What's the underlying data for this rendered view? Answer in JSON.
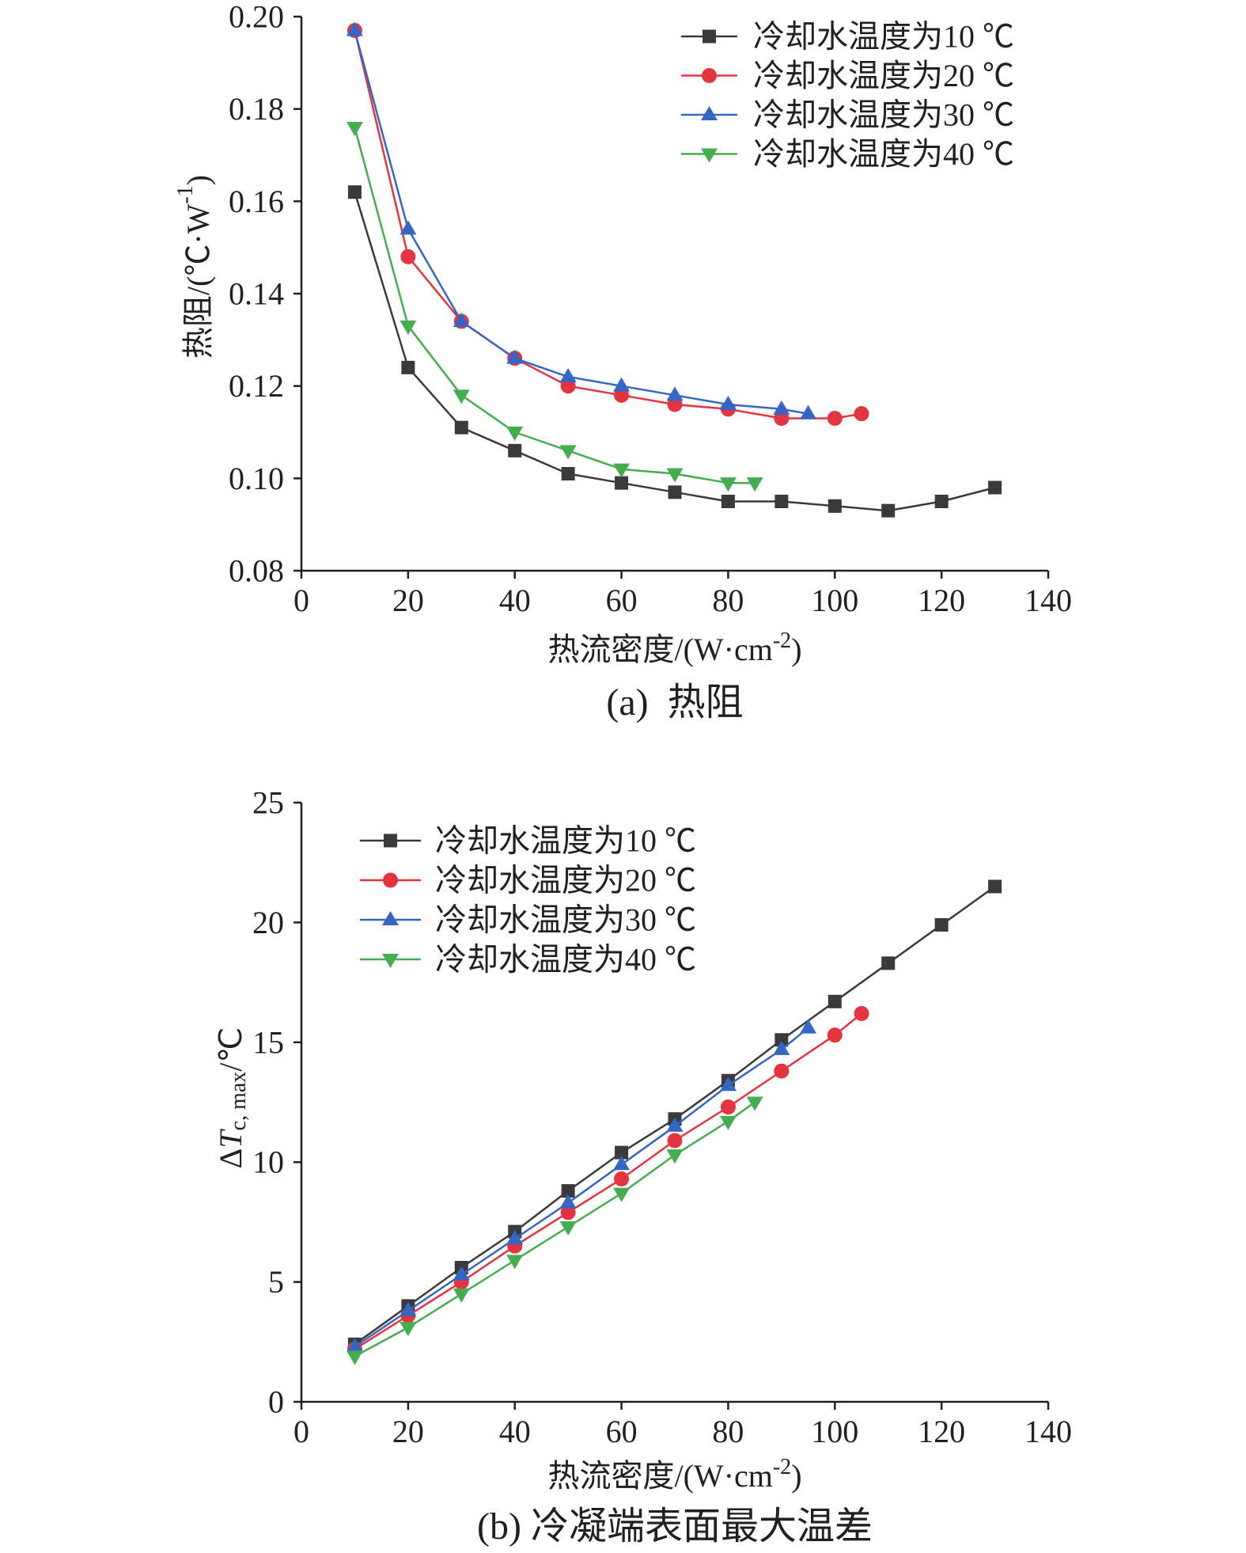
{
  "chart_data": [
    {
      "type": "line",
      "caption": "(a)  热阻",
      "xlabel": {
        "main": "热流密度/(W·cm",
        "superscript": "-2",
        "tail": ")"
      },
      "ylabel": {
        "main": "热阻/(℃·W",
        "superscript": "-1",
        "tail": ")"
      },
      "xlim": [
        0,
        140
      ],
      "ylim": [
        0.08,
        0.2
      ],
      "xticks": [
        0,
        20,
        40,
        60,
        80,
        100,
        120,
        140
      ],
      "xtick_labels": [
        "0",
        "20",
        "40",
        "60",
        "80",
        "100",
        "120",
        "140"
      ],
      "yticks": [
        0.08,
        0.1,
        0.12,
        0.14,
        0.16,
        0.18,
        0.2
      ],
      "ytick_labels": [
        "0.08",
        "0.10",
        "0.12",
        "0.14",
        "0.16",
        "0.18",
        "0.20"
      ],
      "grid": false,
      "legend_position": "top-right",
      "series": [
        {
          "name": "冷却水温度为10 ℃",
          "color": "#3a3a3c",
          "marker": "square",
          "x": [
            10,
            20,
            30,
            40,
            50,
            60,
            70,
            80,
            90,
            100,
            110,
            120,
            130
          ],
          "y": [
            0.162,
            0.124,
            0.111,
            0.106,
            0.101,
            0.099,
            0.097,
            0.095,
            0.095,
            0.094,
            0.093,
            0.095,
            0.098
          ]
        },
        {
          "name": "冷却水温度为20 ℃",
          "color": "#e3343f",
          "marker": "circle",
          "x": [
            10,
            20,
            30,
            40,
            50,
            60,
            70,
            80,
            90,
            100,
            105
          ],
          "y": [
            0.197,
            0.148,
            0.134,
            0.126,
            0.12,
            0.118,
            0.116,
            0.115,
            0.113,
            0.113,
            0.114
          ]
        },
        {
          "name": "冷却水温度为30 ℃",
          "color": "#3566c4",
          "marker": "triangle-up",
          "x": [
            10,
            20,
            30,
            40,
            50,
            60,
            70,
            80,
            90,
            95
          ],
          "y": [
            0.197,
            0.154,
            0.134,
            0.126,
            0.122,
            0.12,
            0.118,
            0.116,
            0.115,
            0.114
          ]
        },
        {
          "name": "冷却水温度为40 ℃",
          "color": "#45ad4f",
          "marker": "triangle-down",
          "x": [
            10,
            20,
            30,
            40,
            50,
            60,
            70,
            80,
            85
          ],
          "y": [
            0.176,
            0.133,
            0.118,
            0.11,
            0.106,
            0.102,
            0.101,
            0.099,
            0.099
          ]
        }
      ]
    },
    {
      "type": "line",
      "caption": "(b) 冷凝端表面最大温差",
      "xlabel": {
        "main": "热流密度/(W·cm",
        "superscript": "-2",
        "tail": ")"
      },
      "ylabel": {
        "symbol": "Δ",
        "variable": "T",
        "subscript": "c, max",
        "tail": "/℃"
      },
      "xlim": [
        0,
        140
      ],
      "ylim": [
        0,
        25
      ],
      "xticks": [
        0,
        20,
        40,
        60,
        80,
        100,
        120,
        140
      ],
      "xtick_labels": [
        "0",
        "20",
        "40",
        "60",
        "80",
        "100",
        "120",
        "140"
      ],
      "yticks": [
        0,
        5,
        10,
        15,
        20,
        25
      ],
      "ytick_labels": [
        "0",
        "5",
        "10",
        "15",
        "20",
        "25"
      ],
      "grid": false,
      "legend_position": "top-left",
      "series": [
        {
          "name": "冷却水温度为10 ℃",
          "color": "#3a3a3c",
          "marker": "square",
          "x": [
            10,
            20,
            30,
            40,
            50,
            60,
            70,
            80,
            90,
            100,
            110,
            120,
            130
          ],
          "y": [
            2.4,
            4.0,
            5.6,
            7.1,
            8.8,
            10.4,
            11.8,
            13.4,
            15.1,
            16.7,
            18.3,
            19.9,
            21.5
          ]
        },
        {
          "name": "冷却水温度为20 ℃",
          "color": "#e3343f",
          "marker": "circle",
          "x": [
            10,
            20,
            30,
            40,
            50,
            60,
            70,
            80,
            90,
            100,
            105
          ],
          "y": [
            2.2,
            3.6,
            5.0,
            6.5,
            7.9,
            9.3,
            10.9,
            12.3,
            13.8,
            15.3,
            16.2
          ]
        },
        {
          "name": "冷却水温度为30 ℃",
          "color": "#3566c4",
          "marker": "triangle-up",
          "x": [
            10,
            20,
            30,
            40,
            50,
            60,
            70,
            80,
            90,
            95
          ],
          "y": [
            2.3,
            3.8,
            5.3,
            6.8,
            8.3,
            9.9,
            11.5,
            13.2,
            14.7,
            15.6
          ]
        },
        {
          "name": "冷却水温度为40 ℃",
          "color": "#45ad4f",
          "marker": "triangle-down",
          "x": [
            10,
            20,
            30,
            40,
            50,
            60,
            70,
            80,
            85
          ],
          "y": [
            1.9,
            3.1,
            4.5,
            5.9,
            7.3,
            8.7,
            10.3,
            11.7,
            12.5
          ]
        }
      ]
    }
  ]
}
